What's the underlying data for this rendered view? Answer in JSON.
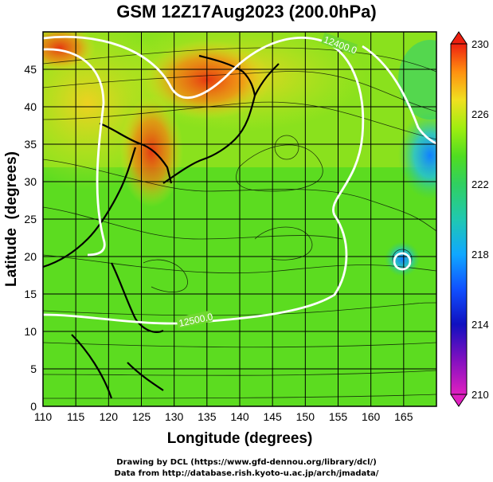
{
  "figure": {
    "title": "GSM 12Z17Aug2023 (200.0hPa)",
    "xlabel": "Longitude (degrees)",
    "ylabel": "Latitude  (degrees)",
    "credit_line1": "Drawing by DCL (https://www.gfd-dennou.org/library/dcl/)",
    "credit_line2": "Data from http://database.rish.kyoto-u.ac.jp/arch/jmadata/"
  },
  "map": {
    "lon_range": [
      110,
      170
    ],
    "lat_range": [
      0,
      50
    ],
    "lon_ticks": [
      "110",
      "115",
      "120",
      "125",
      "130",
      "135",
      "140",
      "145",
      "150",
      "155",
      "160",
      "165"
    ],
    "lat_ticks": [
      "0",
      "5",
      "10",
      "15",
      "20",
      "25",
      "30",
      "35",
      "40",
      "45"
    ],
    "grid_spacing_deg": 5,
    "contour_labels": [
      "12400.0",
      "12500.0"
    ],
    "background_fill": "streamlines over shaded temperature field"
  },
  "colorbar": {
    "tick_labels": [
      "230",
      "226",
      "222",
      "218",
      "214",
      "210"
    ],
    "min": 210,
    "max": 230,
    "colors": [
      "#e020c0",
      "#1010c0",
      "#1060ff",
      "#20c0ff",
      "#30d090",
      "#40dd20",
      "#90ee10",
      "#f0e020",
      "#ff9010",
      "#ee3010"
    ]
  },
  "chart_data": {
    "type": "heatmap",
    "title": "GSM 12Z17Aug2023 (200.0hPa)",
    "xlabel": "Longitude (degrees)",
    "ylabel": "Latitude  (degrees)",
    "xlim": [
      110,
      170
    ],
    "ylim": [
      0,
      50
    ],
    "colorbar_range": [
      210,
      230
    ],
    "contours": [
      {
        "label": "12400.0",
        "value": 12400.0
      },
      {
        "label": "12500.0",
        "value": 12500.0
      }
    ]
  }
}
